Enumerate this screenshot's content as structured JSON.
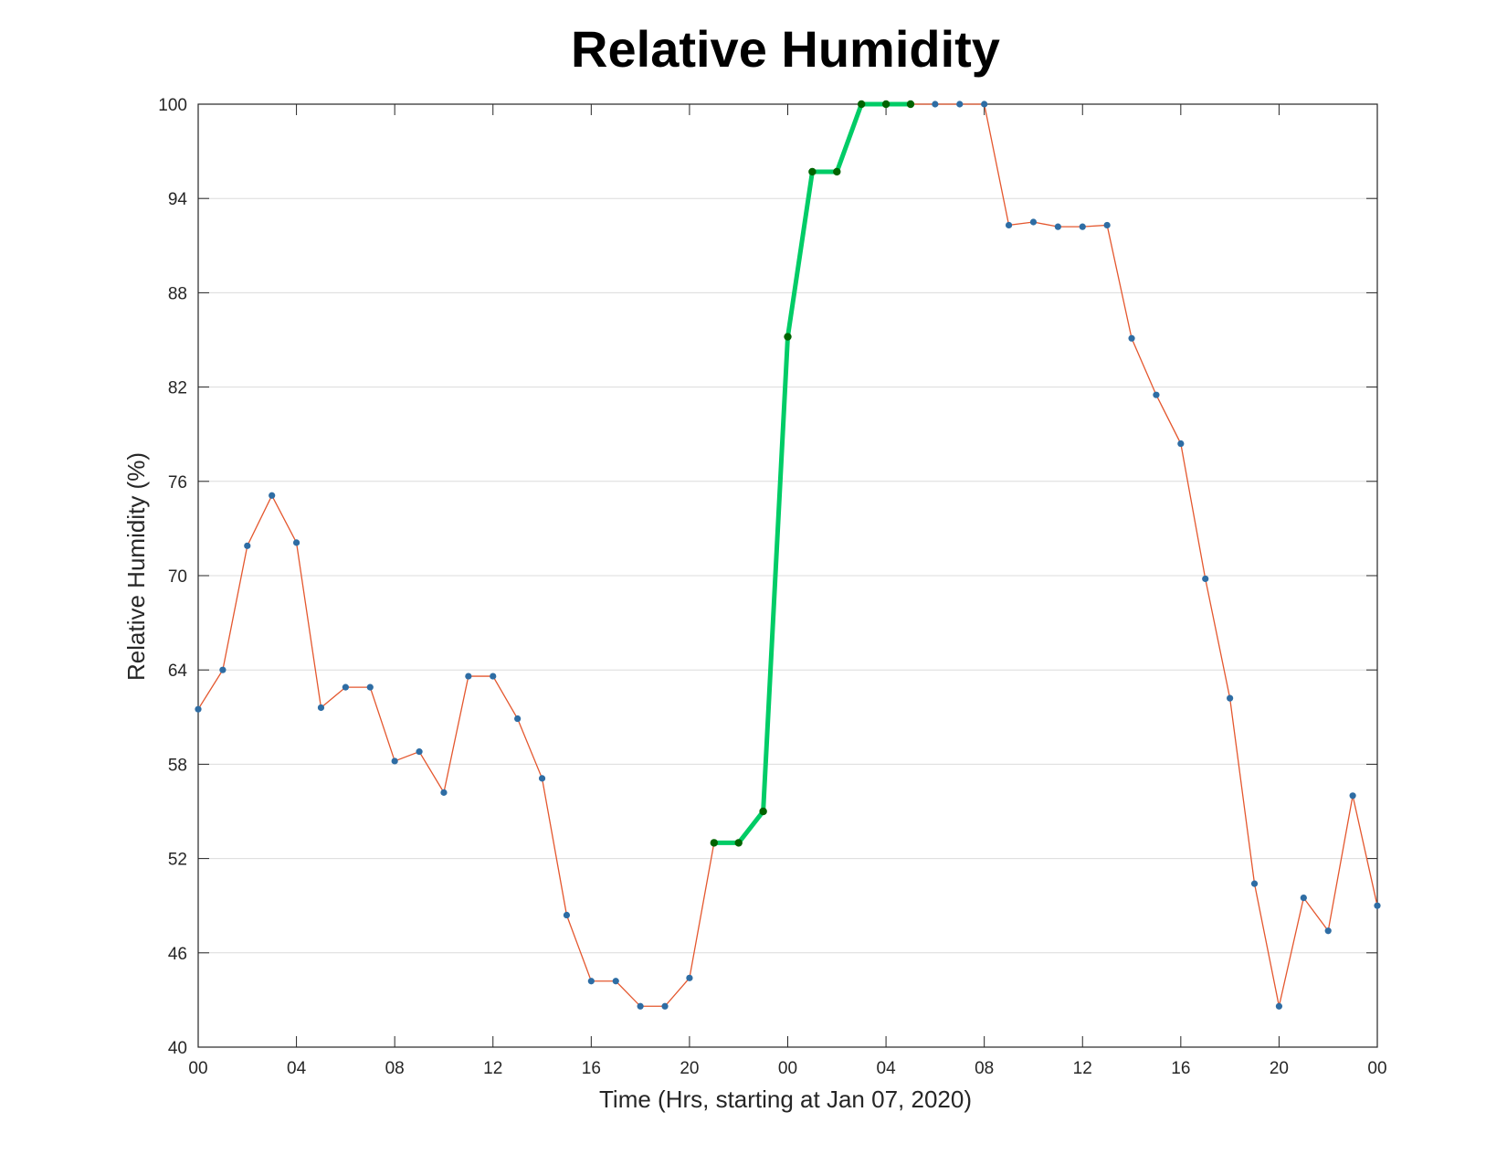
{
  "chart_data": {
    "type": "line",
    "title": "Relative Humidity",
    "xlabel": "Time (Hrs, starting at Jan 07, 2020)",
    "ylabel": "Relative Humidity (%)",
    "x_range_hours": [
      0,
      48
    ],
    "ylim": [
      40,
      100
    ],
    "y_ticks": [
      40,
      46,
      52,
      58,
      64,
      70,
      76,
      82,
      88,
      94,
      100
    ],
    "x_tick_hours": [
      0,
      4,
      8,
      12,
      16,
      20,
      24,
      28,
      32,
      36,
      40,
      44,
      48
    ],
    "x_tick_labels": [
      "00",
      "04",
      "08",
      "12",
      "16",
      "20",
      "00",
      "04",
      "08",
      "12",
      "16",
      "20",
      "00"
    ],
    "grid": "horizontal",
    "x_hours": [
      0,
      1,
      2,
      3,
      4,
      5,
      6,
      7,
      8,
      9,
      10,
      11,
      12,
      13,
      14,
      15,
      16,
      17,
      18,
      19,
      20,
      21,
      22,
      23,
      24,
      25,
      26,
      27,
      28,
      29,
      30,
      31,
      32,
      33,
      34,
      35,
      36,
      37,
      38,
      39,
      40,
      41,
      42,
      43,
      44,
      45,
      46,
      47,
      48
    ],
    "y": [
      61.5,
      64.0,
      71.9,
      75.1,
      72.1,
      61.6,
      62.9,
      62.9,
      58.2,
      58.8,
      56.2,
      63.6,
      63.6,
      60.9,
      57.1,
      48.4,
      44.2,
      44.2,
      42.6,
      42.6,
      44.4,
      53.0,
      53.0,
      55.0,
      85.2,
      95.7,
      95.7,
      100.0,
      100.0,
      100.0,
      100.0,
      100.0,
      100.0,
      92.3,
      92.5,
      92.2,
      92.2,
      92.3,
      85.1,
      81.5,
      78.4,
      69.8,
      62.2,
      50.4,
      42.6,
      49.5,
      47.4,
      56.0,
      49.0
    ],
    "highlight_range_hours": [
      21,
      29
    ],
    "colors": {
      "line": "#e4572e",
      "marker": "#2e6da4",
      "highlight_line": "#00cc66",
      "highlight_marker": "#006400",
      "grid": "#dcdcdc",
      "axis": "#262626"
    }
  }
}
